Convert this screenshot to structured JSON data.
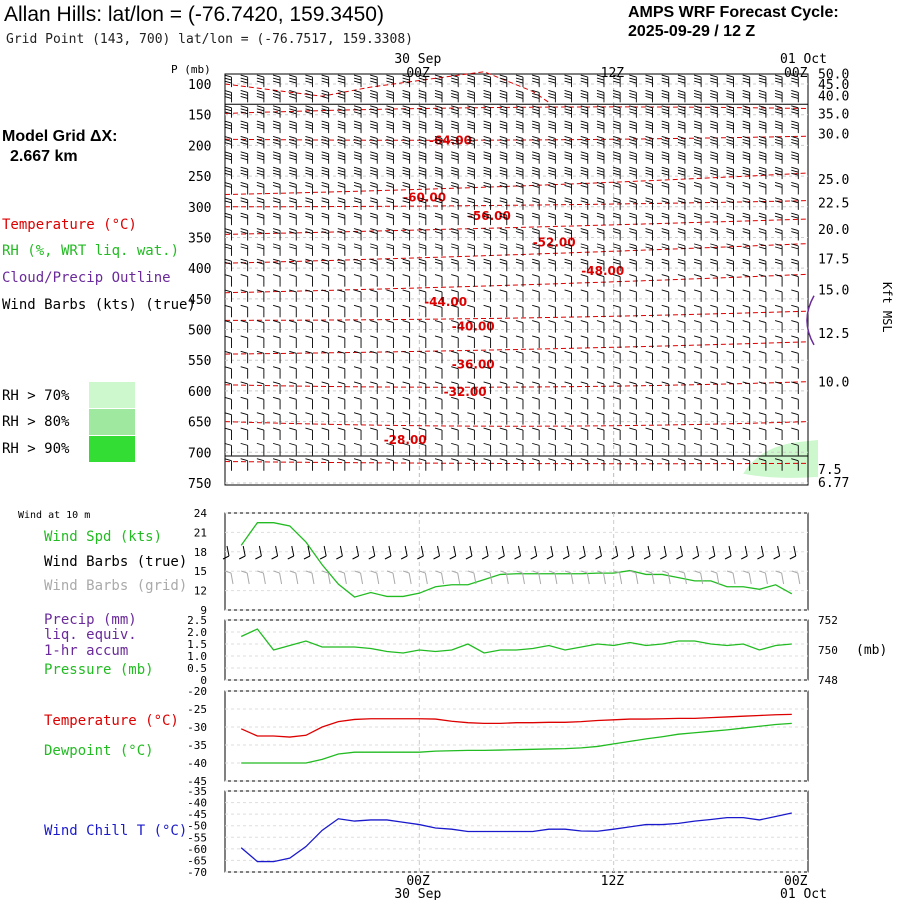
{
  "header": {
    "title": "Allan Hills:  lat/lon = (-76.7420, 159.3450)",
    "grid_point": "Grid Point (143, 700) lat/lon = (-76.7517, 159.3308)",
    "cycle_line1": "AMPS WRF Forecast Cycle:",
    "cycle_line2": "2025-09-29 / 12  Z",
    "model_grid_line1": "Model Grid ΔX:",
    "model_grid_line2": "2.667 km"
  },
  "legend": {
    "temperature": "Temperature (°C)",
    "rh": "RH (%, WRT liq. wat.)",
    "cloud": "Cloud/Precip Outline",
    "barbs": "Wind Barbs (kts) (true)",
    "rh70": "RH > 70%",
    "rh80": "RH > 80%",
    "rh90": "RH > 90%"
  },
  "colors": {
    "temperature": "#dd0000",
    "rh": "#22bb22",
    "cloud": "#6a2a9a",
    "rh70": "#cdf7cd",
    "rh80": "#9fe89f",
    "rh90": "#33dd33",
    "wind_chill": "#1a1acc",
    "grid_barb": "#aaaaaa"
  },
  "time_axis": {
    "top_date_left": "30 Sep",
    "top_date_right": "01 Oct",
    "ticks": [
      "00Z",
      "12Z",
      "00Z"
    ],
    "bottom_date_left": "30 Sep",
    "bottom_date_right": "01 Oct"
  },
  "chart_data": [
    {
      "type": "line",
      "title": "Time-pressure cross section",
      "ylabel_left": "P (mb)",
      "ylabel_right": "Kft MSL",
      "ylim": [
        750,
        100
      ],
      "pressure_levels": [
        "100",
        "150",
        "200",
        "250",
        "300",
        "350",
        "400",
        "450",
        "500",
        "550",
        "600",
        "650",
        "700",
        "750"
      ],
      "height_labels": [
        "50.0",
        "45.0",
        "40.0",
        "35.0",
        "30.0",
        "25.0",
        "22.5",
        "20.0",
        "17.5",
        "15.0",
        "12.5",
        "10.0",
        "7.5",
        "6.77"
      ],
      "height_label_pressures": [
        83,
        100,
        119,
        148,
        181,
        255,
        293,
        336,
        384,
        435,
        506,
        585,
        727,
        748
      ],
      "temperature_contours": [
        {
          "label": "-64.00",
          "hour": 12.6,
          "p": 192
        },
        {
          "label": "-60.00",
          "hour": 11.0,
          "p": 285
        },
        {
          "label": "-56.00",
          "hour": 15.0,
          "p": 315
        },
        {
          "label": "-52.00",
          "hour": 19.0,
          "p": 358
        },
        {
          "label": "-48.00",
          "hour": 22.0,
          "p": 405
        },
        {
          "label": "-44.00",
          "hour": 12.3,
          "p": 455
        },
        {
          "label": "-40.00",
          "hour": 14.0,
          "p": 495
        },
        {
          "label": "-36.00",
          "hour": 14.0,
          "p": 557
        },
        {
          "label": "-32.00",
          "hour": 13.5,
          "p": 602
        },
        {
          "label": "-28.00",
          "hour": 9.8,
          "p": 680
        }
      ]
    },
    {
      "type": "line",
      "title": "Wind at 10 m",
      "ylabel": "Wind Spd (kts)",
      "legend_entries": [
        "Wind Spd (kts)",
        "Wind Barbs (true)",
        "Wind Barbs (grid)"
      ],
      "ylim": [
        9,
        24
      ],
      "yticks": [
        "24",
        "21",
        "18",
        "15",
        "12",
        "9"
      ],
      "hours": [
        0,
        1,
        2,
        3,
        4,
        5,
        6,
        7,
        8,
        9,
        10,
        11,
        12,
        13,
        14,
        15,
        16,
        17,
        18,
        19,
        20,
        21,
        22,
        23,
        24,
        25,
        26,
        27,
        28,
        29,
        30,
        31,
        32,
        33,
        34
      ],
      "values": [
        19,
        22.5,
        22.5,
        22,
        19.5,
        16,
        13,
        11,
        11.7,
        11.1,
        11.1,
        11.6,
        12.6,
        12.9,
        12.9,
        13.7,
        14.5,
        14.6,
        14.6,
        14.6,
        14.6,
        14.6,
        14.7,
        14.7,
        15.1,
        14.5,
        14.5,
        14,
        13.5,
        13.5,
        12.6,
        12.6,
        12.2,
        12.9,
        11.5
      ]
    },
    {
      "type": "line",
      "title": "Precip and Pressure",
      "legend_entries": [
        "Precip (mm)",
        "liq. equiv.",
        "1-hr accum",
        "Pressure (mb)"
      ],
      "ylim_left": [
        0,
        2.5
      ],
      "yticks_left": [
        "2.5",
        "2.0",
        "1.5",
        "1.0",
        "0.5",
        "0"
      ],
      "ylim_right": [
        748,
        752
      ],
      "yticks_right": [
        "752",
        "750",
        "748"
      ],
      "right_unit": "(mb)",
      "series": [
        {
          "name": "Pressure (mb)",
          "hours": [
            0,
            1,
            2,
            3,
            4,
            5,
            6,
            7,
            8,
            9,
            10,
            11,
            12,
            13,
            14,
            15,
            16,
            17,
            18,
            19,
            20,
            21,
            22,
            23,
            24,
            25,
            26,
            27,
            28,
            29,
            30,
            31,
            32,
            33,
            34
          ],
          "values": [
            750.9,
            751.4,
            750.0,
            750.3,
            750.6,
            750.2,
            750.2,
            750.2,
            750.1,
            749.9,
            749.8,
            750.0,
            749.9,
            750.0,
            750.4,
            749.8,
            750.0,
            750.0,
            750.1,
            750.3,
            750.0,
            750.2,
            750.4,
            750.3,
            750.5,
            750.3,
            750.4,
            750.6,
            750.6,
            750.4,
            750.3,
            750.4,
            750.0,
            750.3,
            750.4
          ]
        },
        {
          "name": "Precip (mm)",
          "hours": [
            0,
            34
          ],
          "values": [
            0,
            0
          ]
        }
      ]
    },
    {
      "type": "line",
      "title": "Temperature and Dewpoint",
      "ylim": [
        -45,
        -20
      ],
      "yticks": [
        "-20",
        "-25",
        "-30",
        "-35",
        "-40",
        "-45"
      ],
      "series": [
        {
          "name": "Temperature (°C)",
          "hours": [
            0,
            1,
            2,
            3,
            4,
            5,
            6,
            7,
            8,
            9,
            10,
            11,
            12,
            13,
            14,
            15,
            16,
            17,
            18,
            19,
            20,
            21,
            22,
            23,
            24,
            25,
            26,
            27,
            28,
            29,
            30,
            31,
            32,
            33,
            34
          ],
          "values": [
            -30.5,
            -32.5,
            -32.5,
            -32.8,
            -32.3,
            -30,
            -28.5,
            -27.9,
            -27.7,
            -27.7,
            -27.7,
            -27.7,
            -27.8,
            -28.4,
            -28.8,
            -29,
            -29,
            -28.8,
            -28.8,
            -28.7,
            -28.7,
            -28.5,
            -28.2,
            -28,
            -27.8,
            -27.8,
            -27.7,
            -27.6,
            -27.6,
            -27.4,
            -27.2,
            -27,
            -26.8,
            -26.6,
            -26.5
          ]
        },
        {
          "name": "Dewpoint (°C)",
          "hours": [
            0,
            1,
            2,
            3,
            4,
            5,
            6,
            7,
            8,
            9,
            10,
            11,
            12,
            13,
            14,
            15,
            16,
            17,
            18,
            19,
            20,
            21,
            22,
            23,
            24,
            25,
            26,
            27,
            28,
            29,
            30,
            31,
            32,
            33,
            34
          ],
          "values": [
            -40,
            -40,
            -40,
            -40,
            -40,
            -39,
            -37.5,
            -37,
            -37,
            -37,
            -37,
            -37,
            -36.7,
            -36.6,
            -36.5,
            -36.5,
            -36.4,
            -36.3,
            -36.2,
            -36.1,
            -36,
            -35.8,
            -35.4,
            -34.7,
            -34,
            -33.3,
            -32.7,
            -32,
            -31.6,
            -31.2,
            -30.8,
            -30.3,
            -29.8,
            -29.3,
            -29.0
          ]
        }
      ]
    },
    {
      "type": "line",
      "title": "Wind Chill",
      "ylim": [
        -70,
        -35
      ],
      "yticks": [
        "-35",
        "-40",
        "-45",
        "-50",
        "-55",
        "-60",
        "-65",
        "-70"
      ],
      "series": [
        {
          "name": "Wind Chill T (°C)",
          "hours": [
            0,
            1,
            2,
            3,
            4,
            5,
            6,
            7,
            8,
            9,
            10,
            11,
            12,
            13,
            14,
            15,
            16,
            17,
            18,
            19,
            20,
            21,
            22,
            23,
            24,
            25,
            26,
            27,
            28,
            29,
            30,
            31,
            32,
            33,
            34
          ],
          "values": [
            -59.5,
            -65.5,
            -65.5,
            -64,
            -59,
            -52,
            -47,
            -48,
            -47.5,
            -47.5,
            -48.5,
            -49.5,
            -51,
            -51.5,
            -52.5,
            -52.5,
            -52.5,
            -52.5,
            -52.5,
            -51.5,
            -51.5,
            -52.3,
            -52.4,
            -51.5,
            -50.5,
            -49.5,
            -49.5,
            -49,
            -48,
            -47.3,
            -46.5,
            -46.5,
            -47.5,
            -46,
            -44.5
          ]
        }
      ]
    }
  ],
  "right_axis_panels": {
    "label": "Kft MSL",
    "wind_label_small": "Wind at 10 m"
  },
  "lower_legends": {
    "wind_spd": "Wind Spd (kts)",
    "wind_barbs_true": "Wind Barbs (true)",
    "wind_barbs_grid": "Wind Barbs (grid)",
    "precip": "Precip (mm)",
    "liq": "liq. equiv.",
    "accum": "1-hr accum",
    "pressure": "Pressure (mb)",
    "temperature": "Temperature (°C)",
    "dewpoint": "Dewpoint (°C)",
    "wind_chill": "Wind Chill T (°C)"
  }
}
